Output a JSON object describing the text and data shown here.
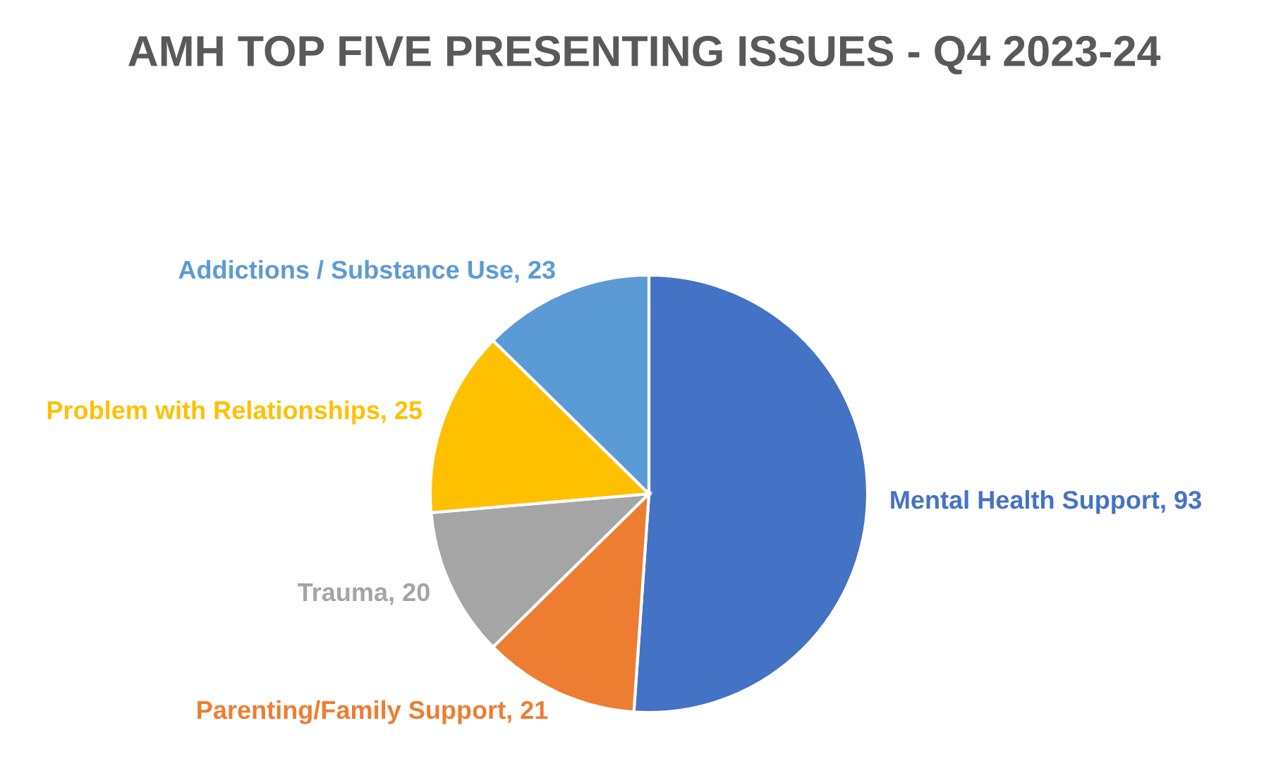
{
  "chart_data": {
    "type": "pie",
    "title": "AMH TOP FIVE PRESENTING ISSUES - Q4 2023-24",
    "categories": [
      "Mental Health Support",
      "Parenting/Family Support",
      "Trauma",
      "Problem with Relationships",
      "Addictions / Substance Use"
    ],
    "values": [
      93,
      21,
      20,
      25,
      23
    ],
    "colors": [
      "#4472c4",
      "#ed7d31",
      "#a5a5a5",
      "#ffc000",
      "#5b9bd5"
    ],
    "value_labels": [
      ", 93",
      ", 21",
      ", 20",
      ", 25",
      ", 23"
    ]
  }
}
